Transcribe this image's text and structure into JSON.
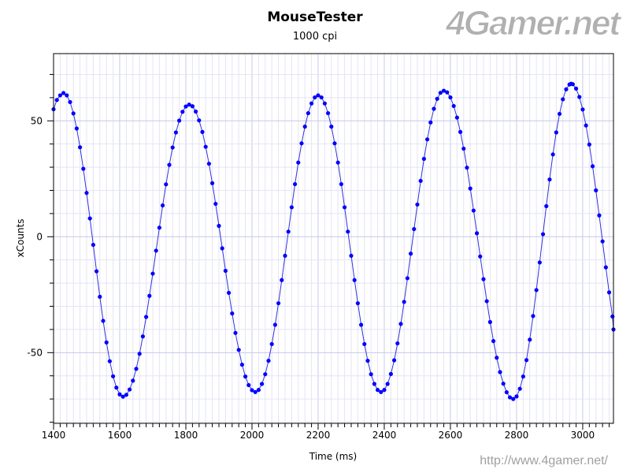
{
  "chart_data": {
    "type": "scatter",
    "title": "MouseTester",
    "subtitle": "1000 cpi",
    "xlabel": "Time (ms)",
    "ylabel": "xCounts",
    "xlim": [
      1400,
      3093
    ],
    "ylim": [
      -80.5,
      79
    ],
    "xticks": [
      1400,
      1600,
      1800,
      2000,
      2200,
      2400,
      2600,
      2800,
      3000
    ],
    "yticks": [
      -50,
      0,
      50
    ],
    "grid": true,
    "series": [
      {
        "name": "xCounts",
        "color": "#0000ff",
        "line_color": "#3030e0",
        "x": [
          1400,
          1410,
          1420,
          1430,
          1440,
          1450,
          1460,
          1470,
          1480,
          1490,
          1500,
          1510,
          1520,
          1530,
          1540,
          1550,
          1560,
          1570,
          1580,
          1590,
          1600,
          1610,
          1620,
          1630,
          1640,
          1650,
          1660,
          1670,
          1680,
          1690,
          1700,
          1710,
          1720,
          1730,
          1740,
          1750,
          1760,
          1770,
          1780,
          1790,
          1800,
          1810,
          1820,
          1830,
          1840,
          1850,
          1860,
          1870,
          1880,
          1890,
          1900,
          1910,
          1920,
          1930,
          1940,
          1950,
          1960,
          1970,
          1980,
          1990,
          2000,
          2010,
          2020,
          2030,
          2040,
          2050,
          2060,
          2070,
          2080,
          2090,
          2100,
          2110,
          2120,
          2130,
          2140,
          2150,
          2160,
          2170,
          2180,
          2190,
          2200,
          2210,
          2220,
          2230,
          2240,
          2250,
          2260,
          2270,
          2280,
          2290,
          2300,
          2310,
          2320,
          2330,
          2340,
          2350,
          2360,
          2370,
          2380,
          2390,
          2400,
          2410,
          2420,
          2430,
          2440,
          2450,
          2460,
          2470,
          2480,
          2490,
          2500,
          2510,
          2520,
          2530,
          2540,
          2550,
          2560,
          2570,
          2580,
          2590,
          2600,
          2610,
          2620,
          2630,
          2640,
          2650,
          2660,
          2670,
          2680,
          2690,
          2700,
          2710,
          2720,
          2730,
          2740,
          2750,
          2760,
          2770,
          2780,
          2790,
          2800,
          2810,
          2820,
          2830,
          2840,
          2850,
          2860,
          2870,
          2880,
          2890,
          2900,
          2910,
          2920,
          2930,
          2940,
          2950,
          2960,
          2965,
          2970,
          2980,
          2990,
          3000,
          3010,
          3020,
          3030,
          3040,
          3050,
          3060,
          3070,
          3080,
          3090,
          3093
        ],
        "y": [
          55,
          59,
          61,
          62,
          61.0,
          58.1,
          53.2,
          46.7,
          38.6,
          29.3,
          18.9,
          7.9,
          -3.5,
          -14.9,
          -25.9,
          -36.3,
          -45.6,
          -53.7,
          -60.2,
          -65.1,
          -68.0,
          -69,
          -68.2,
          -65.9,
          -62.1,
          -57.0,
          -50.5,
          -43.0,
          -34.6,
          -25.5,
          -15.9,
          -6,
          3.9,
          13.5,
          22.6,
          31.0,
          38.5,
          45.0,
          50.1,
          53.9,
          56.2,
          57,
          56.3,
          54.0,
          50.2,
          45.2,
          38.8,
          31.5,
          23.1,
          14.2,
          4.7,
          -5,
          -14.7,
          -24.2,
          -33.1,
          -41.5,
          -48.8,
          -55.2,
          -60.3,
          -64.0,
          -66.2,
          -67,
          -66.1,
          -63.5,
          -59.3,
          -53.5,
          -46.3,
          -38.0,
          -28.7,
          -18.7,
          -8.2,
          2.2,
          12.7,
          22.7,
          32.0,
          40.3,
          47.5,
          53.3,
          57.5,
          60.1,
          61,
          60.1,
          57.5,
          53.3,
          47.5,
          40.3,
          32.0,
          22.7,
          12.7,
          2.2,
          -8.2,
          -18.7,
          -28.7,
          -38.0,
          -46.3,
          -53.5,
          -59.3,
          -63.5,
          -66.1,
          -67,
          -66.1,
          -63.5,
          -59.2,
          -53.3,
          -46.0,
          -37.6,
          -28.1,
          -17.9,
          -7.3,
          3.3,
          13.9,
          24.1,
          33.6,
          42.0,
          49.3,
          55.2,
          59.5,
          62.1,
          63,
          62.3,
          60.1,
          56.4,
          51.4,
          45.2,
          38.0,
          29.8,
          20.8,
          11.3,
          1.5,
          -8.5,
          -18.3,
          -27.8,
          -36.8,
          -45.0,
          -52.2,
          -58.4,
          -63.4,
          -67.1,
          -69.3,
          -70,
          -68.9,
          -65.6,
          -60.3,
          -53.2,
          -44.4,
          -34.2,
          -23.0,
          -11.1,
          1.1,
          13.2,
          24.7,
          35.5,
          45.0,
          53.0,
          59.3,
          63.6,
          65.7,
          66,
          65.8,
          63.9,
          60.3,
          54.9,
          48.0,
          39.8,
          30.4,
          20.0,
          9.2,
          -2,
          -13.2,
          -24.0,
          -34.4,
          -40
        ]
      }
    ]
  },
  "watermark": {
    "logo": "4Gamer.net",
    "url": "http://www.4gamer.net/"
  }
}
